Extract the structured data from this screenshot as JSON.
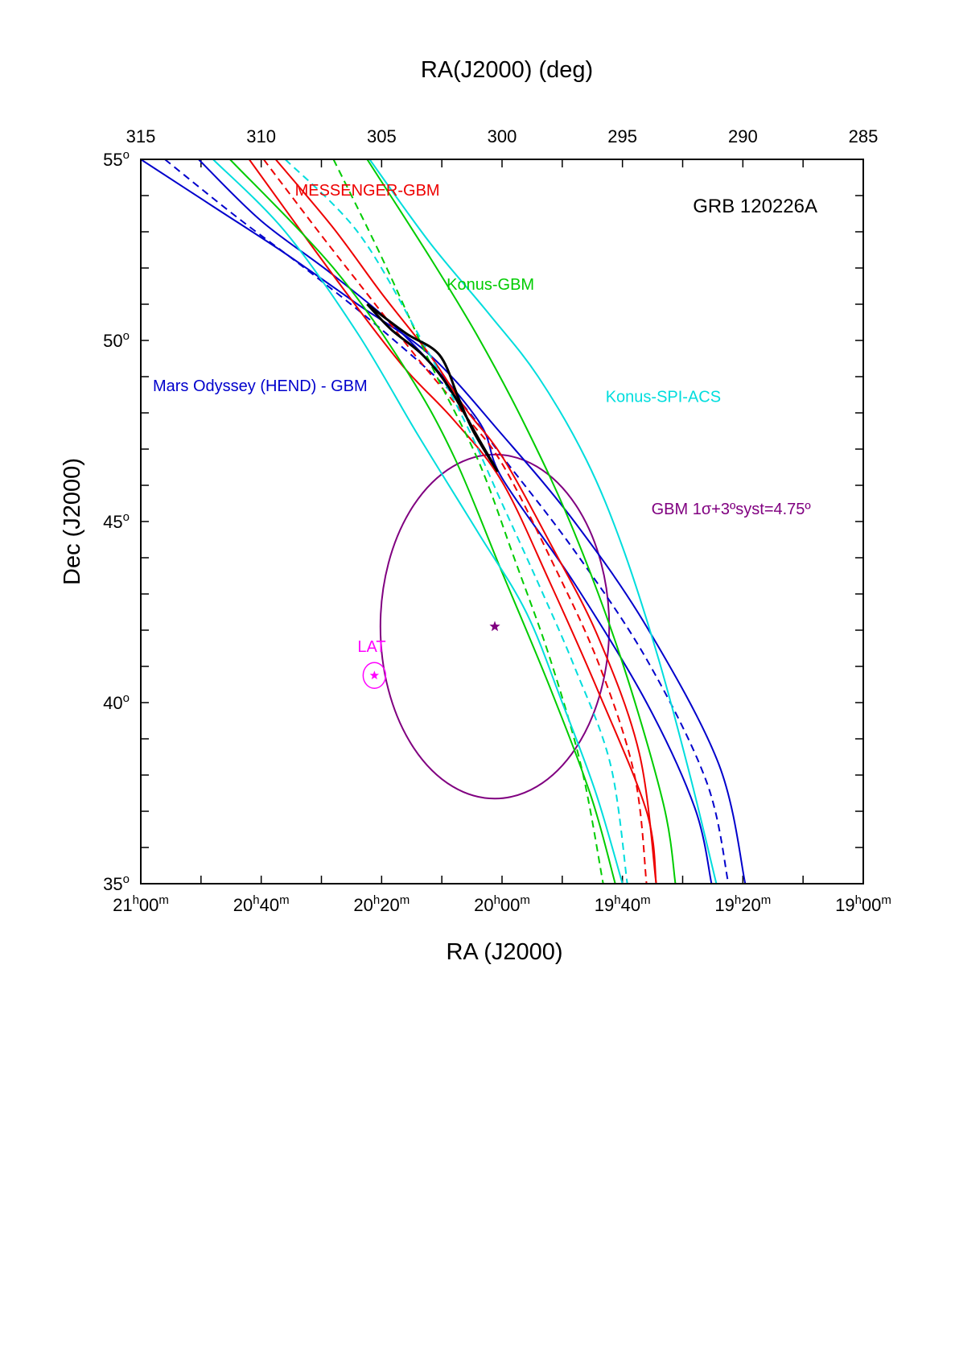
{
  "chart_data": {
    "type": "line",
    "title": "GRB 120226A",
    "xlabel_bottom": "RA (J2000)",
    "xlabel_top": "RA(J2000) (deg)",
    "ylabel": "Dec (J2000)",
    "xlim_deg": [
      315,
      285
    ],
    "ylim": [
      35,
      55
    ],
    "grid": false,
    "top_ticks": [
      {
        "value": 315,
        "label": "315"
      },
      {
        "value": 310,
        "label": "310"
      },
      {
        "value": 305,
        "label": "305"
      },
      {
        "value": 300,
        "label": "300"
      },
      {
        "value": 295,
        "label": "295"
      },
      {
        "value": 290,
        "label": "290"
      },
      {
        "value": 285,
        "label": "285"
      }
    ],
    "bottom_ticks": [
      {
        "value": 315,
        "h": "21",
        "m": "00"
      },
      {
        "value": 310,
        "h": "20",
        "m": "40"
      },
      {
        "value": 305,
        "h": "20",
        "m": "20"
      },
      {
        "value": 300,
        "h": "20",
        "m": "00"
      },
      {
        "value": 295,
        "h": "19",
        "m": "40"
      },
      {
        "value": 290,
        "h": "19",
        "m": "20"
      },
      {
        "value": 285,
        "h": "19",
        "m": "00"
      }
    ],
    "y_ticks": [
      {
        "value": 55,
        "label": "55"
      },
      {
        "value": 50,
        "label": "50"
      },
      {
        "value": 45,
        "label": "45"
      },
      {
        "value": 40,
        "label": "40"
      },
      {
        "value": 35,
        "label": "35"
      }
    ],
    "series": [
      {
        "name": "Mars Odyssey (HEND) - GBM",
        "role": "edge",
        "color": "#0000cc",
        "dash": false,
        "points": [
          [
            315,
            55
          ],
          [
            312,
            53.7
          ],
          [
            309,
            52.4
          ],
          [
            306,
            51
          ],
          [
            303,
            49.6
          ],
          [
            300,
            47.4
          ],
          [
            297,
            45
          ],
          [
            294,
            42.1
          ],
          [
            291,
            38.3
          ],
          [
            289.9,
            35
          ]
        ]
      },
      {
        "name": "Mars Odyssey (HEND) - GBM center",
        "role": "center",
        "color": "#0000cc",
        "dash": true,
        "points": [
          [
            314,
            55
          ],
          [
            311,
            53.4
          ],
          [
            308,
            51.9
          ],
          [
            305,
            50.3
          ],
          [
            302,
            48.5
          ],
          [
            300,
            46.8
          ],
          [
            297,
            44.2
          ],
          [
            294,
            41.2
          ],
          [
            291.5,
            37.8
          ],
          [
            290.6,
            35
          ]
        ]
      },
      {
        "name": "Mars Odyssey (HEND) - GBM inner",
        "role": "edge",
        "color": "#0000cc",
        "dash": false,
        "points": [
          [
            312.6,
            55
          ],
          [
            310,
            53.3
          ],
          [
            307,
            51.8
          ],
          [
            304,
            50.1
          ],
          [
            301,
            47.8
          ],
          [
            300,
            46.2
          ],
          [
            297,
            43.3
          ],
          [
            294,
            40
          ],
          [
            292,
            37.1
          ],
          [
            291.3,
            35
          ]
        ]
      },
      {
        "name": "MESSENGER-GBM",
        "role": "edge",
        "color": "#ee0000",
        "dash": false,
        "points": [
          [
            310.5,
            55
          ],
          [
            308,
            52.7
          ],
          [
            306,
            50.9
          ],
          [
            304,
            49.2
          ],
          [
            302,
            47.8
          ],
          [
            300,
            46.1
          ],
          [
            298,
            43.3
          ],
          [
            296,
            40.3
          ],
          [
            294,
            37
          ],
          [
            293.6,
            35
          ]
        ]
      },
      {
        "name": "MESSENGER-GBM center",
        "role": "center",
        "color": "#ee0000",
        "dash": true,
        "points": [
          [
            309.9,
            55
          ],
          [
            307.5,
            52.9
          ],
          [
            305.5,
            51.2
          ],
          [
            303.5,
            49.5
          ],
          [
            301.5,
            47.9
          ],
          [
            300,
            46.6
          ],
          [
            298,
            44
          ],
          [
            296,
            41.1
          ],
          [
            294.5,
            38
          ],
          [
            294,
            35
          ]
        ]
      },
      {
        "name": "MESSENGER-GBM inner",
        "role": "edge",
        "color": "#ee0000",
        "dash": false,
        "points": [
          [
            309.4,
            55
          ],
          [
            307,
            53.1
          ],
          [
            305,
            51.3
          ],
          [
            303,
            49.6
          ],
          [
            301.5,
            48.1
          ],
          [
            300,
            46.8
          ],
          [
            298,
            44.4
          ],
          [
            296,
            41.8
          ],
          [
            294.3,
            38.6
          ],
          [
            293.6,
            35
          ]
        ]
      },
      {
        "name": "Konus-GBM",
        "role": "edge",
        "color": "#00cc00",
        "dash": false,
        "points": [
          [
            311.3,
            55
          ],
          [
            307,
            52
          ],
          [
            304,
            49.2
          ],
          [
            302,
            46.8
          ],
          [
            300,
            43.6
          ],
          [
            298,
            40.4
          ],
          [
            296.3,
            37.4
          ],
          [
            295.3,
            35
          ]
        ]
      },
      {
        "name": "Konus-GBM center",
        "role": "center",
        "color": "#00cc00",
        "dash": true,
        "points": [
          [
            307,
            55
          ],
          [
            305,
            52.3
          ],
          [
            303,
            49.4
          ],
          [
            301,
            46.7
          ],
          [
            299.5,
            44
          ],
          [
            298,
            41.2
          ],
          [
            296.7,
            38.2
          ],
          [
            295.8,
            35
          ]
        ]
      },
      {
        "name": "Konus-GBM inner",
        "role": "edge",
        "color": "#00cc00",
        "dash": false,
        "points": [
          [
            305.6,
            55
          ],
          [
            303,
            52.3
          ],
          [
            301,
            50.1
          ],
          [
            299,
            47.6
          ],
          [
            297,
            44.7
          ],
          [
            295,
            41.1
          ],
          [
            293.3,
            37.2
          ],
          [
            292.8,
            35
          ]
        ]
      },
      {
        "name": "Konus-SPI-ACS",
        "role": "edge",
        "color": "#00dddd",
        "dash": false,
        "points": [
          [
            312,
            55
          ],
          [
            309,
            53
          ],
          [
            306,
            50.2
          ],
          [
            303.5,
            47.4
          ],
          [
            301,
            44.7
          ],
          [
            299,
            42.5
          ],
          [
            297.5,
            40
          ],
          [
            296.1,
            37.5
          ],
          [
            295,
            35
          ]
        ]
      },
      {
        "name": "Konus-SPI-ACS center",
        "role": "center",
        "color": "#00dddd",
        "dash": true,
        "points": [
          [
            309,
            55
          ],
          [
            306,
            53
          ],
          [
            303.5,
            50.2
          ],
          [
            301.5,
            47.7
          ],
          [
            300,
            45.5
          ],
          [
            298.5,
            43.3
          ],
          [
            297,
            41
          ],
          [
            295.5,
            38.3
          ],
          [
            294.8,
            35
          ]
        ]
      },
      {
        "name": "Konus-SPI-ACS inner",
        "role": "edge",
        "color": "#00dddd",
        "dash": false,
        "points": [
          [
            305.5,
            55
          ],
          [
            303,
            52.7
          ],
          [
            300.5,
            50.7
          ],
          [
            298.5,
            49
          ],
          [
            296.5,
            46.7
          ],
          [
            295,
            44.3
          ],
          [
            293.5,
            41.2
          ],
          [
            292.2,
            38
          ],
          [
            291.1,
            35
          ]
        ]
      },
      {
        "name": "Intersection",
        "role": "overlap",
        "color": "#000000",
        "dash": false,
        "points": [
          [
            305.6,
            51
          ],
          [
            304,
            50.2
          ],
          [
            302.6,
            49.6
          ],
          [
            301.8,
            48.4
          ],
          [
            301.2,
            47.5
          ],
          [
            300.2,
            46.4
          ],
          [
            300.9,
            47.2
          ],
          [
            302.2,
            48.7
          ],
          [
            303.3,
            49.6
          ],
          [
            304.6,
            50.3
          ],
          [
            305.6,
            51
          ]
        ]
      }
    ],
    "gbm_region": {
      "center_ra": 300.3,
      "center_dec": 42.1,
      "radius": 4.75,
      "color": "#800080"
    },
    "lat_position": {
      "ra": 305.3,
      "dec": 40.75,
      "color": "#ff00ff"
    },
    "labels": [
      {
        "text": "MESSENGER-GBM",
        "color": "#ee0000",
        "ra": 308.6,
        "dec": 54.0
      },
      {
        "text": "Konus-GBM",
        "color": "#00cc00",
        "ra": 302.3,
        "dec": 51.4
      },
      {
        "text": "Mars Odyssey (HEND) - GBM",
        "color": "#0000cc",
        "ra": 314.5,
        "dec": 48.6
      },
      {
        "text": "Konus-SPI-ACS",
        "color": "#00dddd",
        "ra": 295.7,
        "dec": 48.3
      },
      {
        "text": "GBM 1σ+3ºsyst=4.75º",
        "color": "#800080",
        "ra": 293.8,
        "dec": 45.2
      },
      {
        "text": "LAT",
        "color": "#ff00ff",
        "ra": 306.0,
        "dec": 41.4
      }
    ]
  }
}
